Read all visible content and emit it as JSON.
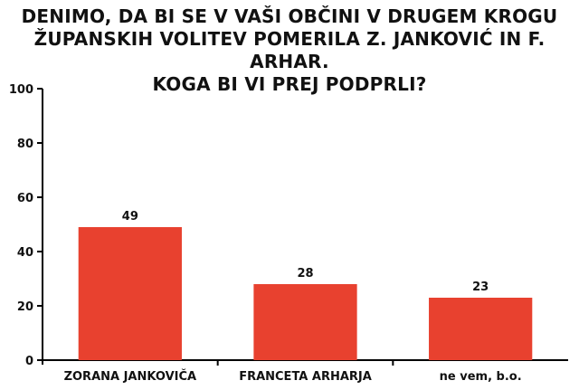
{
  "chart_data": {
    "type": "bar",
    "title_lines": [
      "DENIMO, DA BI SE V VAŠI OBČINI V DRUGEM KROGU",
      "ŽUPANSKIH VOLITEV POMERILA Z. JANKOVIĆ IN F. ARHAR.",
      "KOGA BI VI PREJ PODPRLI?"
    ],
    "categories": [
      "ZORANA JANKOVIČA",
      "FRANCETA ARHARJA",
      "ne vem, b.o."
    ],
    "values": [
      49,
      28,
      23
    ],
    "data_labels": [
      "49",
      "28",
      "23"
    ],
    "ylim": [
      0,
      100
    ],
    "yticks": [
      "0",
      "20",
      "40",
      "60",
      "80",
      "100"
    ],
    "grid": false,
    "bar_color": "#e8412f",
    "xlabel": "",
    "ylabel": ""
  }
}
